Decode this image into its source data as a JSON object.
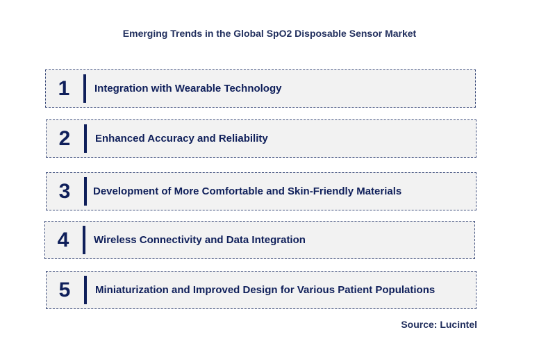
{
  "title": "Emerging Trends in the Global SpO2 Disposable Sensor Market",
  "trends": [
    {
      "number": "1",
      "label": "Integration with Wearable Technology"
    },
    {
      "number": "2",
      "label": "Enhanced Accuracy and Reliability"
    },
    {
      "number": "3",
      "label": "Development of More Comfortable and Skin-Friendly Materials"
    },
    {
      "number": "4",
      "label": "Wireless Connectivity and Data Integration"
    },
    {
      "number": "5",
      "label": "Miniaturization and Improved Design for Various Patient Populations"
    }
  ],
  "source": "Source: Lucintel",
  "colors": {
    "text": "#0f1f5a",
    "box_fill": "#f2f2f2",
    "box_border": "#3b4b7a"
  }
}
